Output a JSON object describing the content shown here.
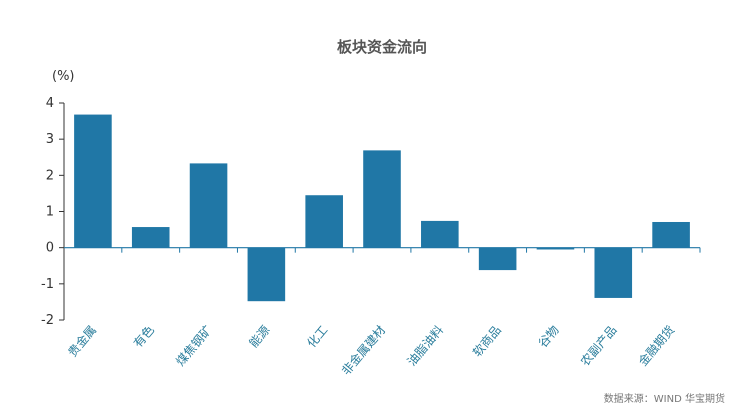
{
  "colors": {
    "bar": "#2077a6",
    "axis": "#2077a6",
    "tick_text": "#333333",
    "xtick_text": "#2a7d9c"
  },
  "chart_data": {
    "type": "bar",
    "title": "板块资金流向",
    "unit_label": "(%)",
    "categories": [
      "贵金属",
      "有色",
      "煤焦钢矿",
      "能源",
      "化工",
      "非金属建材",
      "油脂油料",
      "软商品",
      "谷物",
      "农副产品",
      "金融期货"
    ],
    "values": [
      3.68,
      0.57,
      2.33,
      -1.48,
      1.45,
      2.69,
      0.74,
      -0.62,
      -0.05,
      -1.39,
      0.71
    ],
    "ylim": [
      -2,
      4
    ],
    "yticks": [
      4,
      3,
      2,
      1,
      0,
      -1,
      -2
    ],
    "grid": false,
    "legend": "none"
  },
  "source": "数据来源：WIND 华宝期货"
}
